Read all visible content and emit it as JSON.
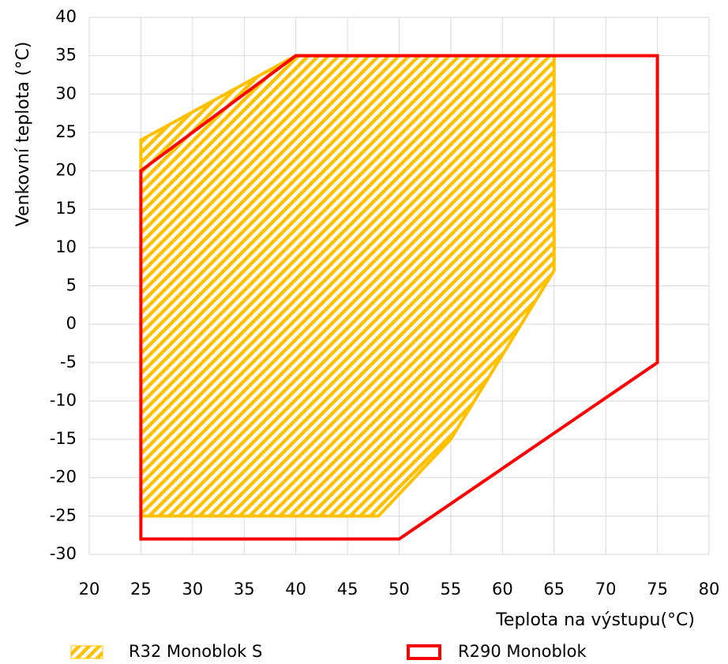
{
  "chart_data": {
    "type": "polygon",
    "xlabel": "Teplota na výstupu(°C)",
    "ylabel": "Venkovní teplota (°C)",
    "xlim": [
      20,
      80
    ],
    "xticks": [
      20,
      25,
      30,
      35,
      40,
      45,
      50,
      55,
      60,
      65,
      70,
      75,
      80
    ],
    "ylim": [
      -30,
      40
    ],
    "yticks": [
      -30,
      -25,
      -20,
      -15,
      -10,
      -5,
      0,
      5,
      10,
      15,
      20,
      25,
      30,
      35,
      40
    ],
    "grid": true,
    "legend": "bottom",
    "series": [
      {
        "name": "R32 Monoblok S",
        "color": "#FFC000",
        "fill": "hatch",
        "x": [
          25,
          40,
          65,
          65,
          55,
          48,
          25
        ],
        "values": [
          24,
          35,
          35,
          7,
          -15,
          -25,
          -25
        ]
      },
      {
        "name": "R290 Monoblok",
        "color": "#FF0000",
        "fill": "none",
        "x": [
          25,
          40,
          75,
          75,
          50,
          25
        ],
        "values": [
          20,
          35,
          35,
          -5,
          -28,
          -28
        ]
      }
    ]
  }
}
